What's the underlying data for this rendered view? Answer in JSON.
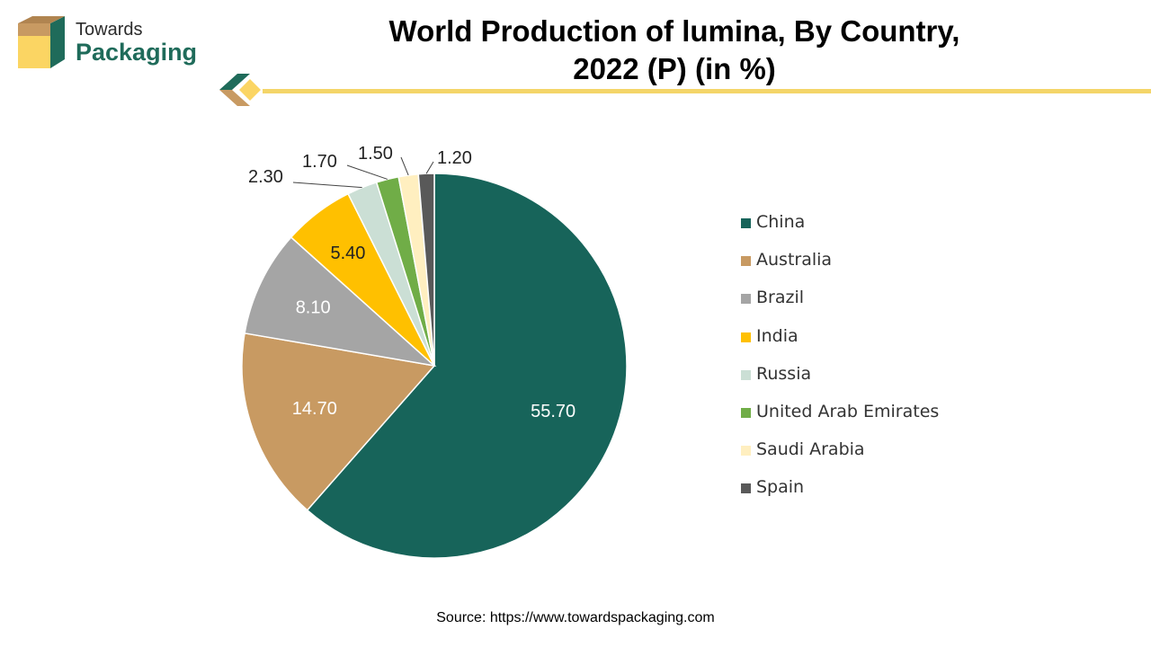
{
  "brand": {
    "line1": "Towards",
    "line2": "Packaging"
  },
  "title": {
    "line1": "World Production of lumina, By Country,",
    "line2": "2022 (P) (in %)"
  },
  "source": "Source: https://www.towardspackaging.com",
  "colors": {
    "brand_green": "#1f6b5a",
    "brand_tan": "#c89a62",
    "brand_yellow": "#f4d569",
    "rule": "#f4d569"
  },
  "chart_data": {
    "type": "pie",
    "title": "World Production of lumina, By Country, 2022 (P) (in %)",
    "start": "12 o'clock, clockwise",
    "legend_position": "right",
    "slices": [
      {
        "label": "China",
        "value": 55.7,
        "display": "55.70",
        "color": "#17645a",
        "label_color": "#ffffff",
        "label_mode": "inside"
      },
      {
        "label": "Australia",
        "value": 14.7,
        "display": "14.70",
        "color": "#c89a62",
        "label_color": "#ffffff",
        "label_mode": "inside"
      },
      {
        "label": "Brazil",
        "value": 8.1,
        "display": "8.10",
        "color": "#a5a5a5",
        "label_color": "#ffffff",
        "label_mode": "inside"
      },
      {
        "label": "India",
        "value": 5.4,
        "display": "5.40",
        "color": "#ffc000",
        "label_color": "#222222",
        "label_mode": "inside"
      },
      {
        "label": "Russia",
        "value": 2.3,
        "display": "2.30",
        "color": "#cbdfd5",
        "label_color": "#222222",
        "label_mode": "outside"
      },
      {
        "label": "United Arab Emirates",
        "value": 1.7,
        "display": "1.70",
        "color": "#70ad47",
        "label_color": "#222222",
        "label_mode": "outside"
      },
      {
        "label": "Saudi Arabia",
        "value": 1.5,
        "display": "1.50",
        "color": "#ffefc0",
        "label_color": "#222222",
        "label_mode": "outside"
      },
      {
        "label": "Spain",
        "value": 1.2,
        "display": "1.20",
        "color": "#595959",
        "label_color": "#222222",
        "label_mode": "outside"
      }
    ]
  }
}
